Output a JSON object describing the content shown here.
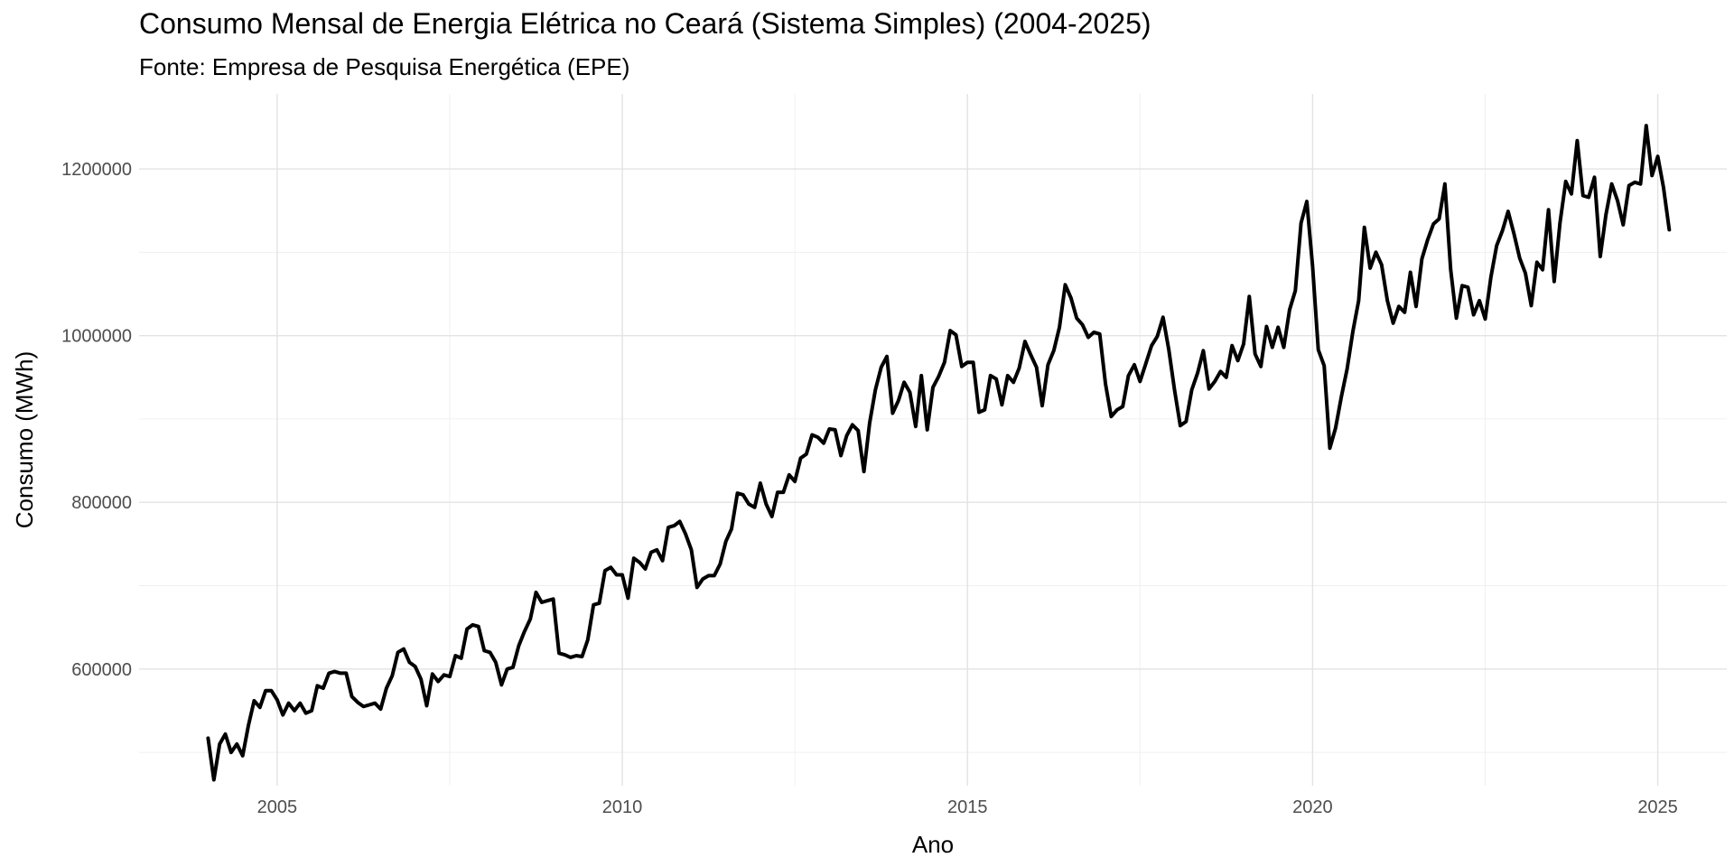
{
  "chart_data": {
    "type": "line",
    "title": "Consumo Mensal de Energia Elétrica no Ceará (Sistema Simples) (2004-2025)",
    "subtitle": "Fonte: Empresa de Pesquisa Energética (EPE)",
    "xlabel": "Ano",
    "ylabel": "Consumo (MWh)",
    "xlim": [
      2003.0,
      2026.0
    ],
    "ylim": [
      460000,
      1290000
    ],
    "x_ticks": [
      2005,
      2010,
      2015,
      2020,
      2025
    ],
    "y_ticks": [
      600000,
      800000,
      1000000,
      1200000
    ],
    "y_tick_labels": [
      "600000",
      "800000",
      "1000000",
      "1200000"
    ],
    "grid": true,
    "legend": "none",
    "line_color": "#000000",
    "series": [
      {
        "x": [
          2004.0,
          2004.083,
          2004.167,
          2004.25,
          2004.333,
          2004.417,
          2004.5,
          2004.583,
          2004.667,
          2004.75,
          2004.833,
          2004.917,
          2005.0,
          2005.083,
          2005.167,
          2005.25,
          2005.333,
          2005.417,
          2005.5,
          2005.583,
          2005.667,
          2005.75,
          2005.833,
          2005.917,
          2006.0,
          2006.083,
          2006.167,
          2006.25,
          2006.333,
          2006.417,
          2006.5,
          2006.583,
          2006.667,
          2006.75,
          2006.833,
          2006.917,
          2007.0,
          2007.083,
          2007.167,
          2007.25,
          2007.333,
          2007.417,
          2007.5,
          2007.583,
          2007.667,
          2007.75,
          2007.833,
          2007.917,
          2008.0,
          2008.083,
          2008.167,
          2008.25,
          2008.333,
          2008.417,
          2008.5,
          2008.583,
          2008.667,
          2008.75,
          2008.833,
          2008.917,
          2009.0,
          2009.083,
          2009.167,
          2009.25,
          2009.333,
          2009.417,
          2009.5,
          2009.583,
          2009.667,
          2009.75,
          2009.833,
          2009.917,
          2010.0,
          2010.083,
          2010.167,
          2010.25,
          2010.333,
          2010.417,
          2010.5,
          2010.583,
          2010.667,
          2010.75,
          2010.833,
          2010.917,
          2011.0,
          2011.083,
          2011.167,
          2011.25,
          2011.333,
          2011.417,
          2011.5,
          2011.583,
          2011.667,
          2011.75,
          2011.833,
          2011.917,
          2012.0,
          2012.083,
          2012.167,
          2012.25,
          2012.333,
          2012.417,
          2012.5,
          2012.583,
          2012.667,
          2012.75,
          2012.833,
          2012.917,
          2013.0,
          2013.083,
          2013.167,
          2013.25,
          2013.333,
          2013.417,
          2013.5,
          2013.583,
          2013.667,
          2013.75,
          2013.833,
          2013.917,
          2014.0,
          2014.083,
          2014.167,
          2014.25,
          2014.333,
          2014.417,
          2014.5,
          2014.583,
          2014.667,
          2014.75,
          2014.833,
          2014.917,
          2015.0,
          2015.083,
          2015.167,
          2015.25,
          2015.333,
          2015.417,
          2015.5,
          2015.583,
          2015.667,
          2015.75,
          2015.833,
          2015.917,
          2016.0,
          2016.083,
          2016.167,
          2016.25,
          2016.333,
          2016.417,
          2016.5,
          2016.583,
          2016.667,
          2016.75,
          2016.833,
          2016.917,
          2017.0,
          2017.083,
          2017.167,
          2017.25,
          2017.333,
          2017.417,
          2017.5,
          2017.583,
          2017.667,
          2017.75,
          2017.833,
          2017.917,
          2018.0,
          2018.083,
          2018.167,
          2018.25,
          2018.333,
          2018.417,
          2018.5,
          2018.583,
          2018.667,
          2018.75,
          2018.833,
          2018.917,
          2019.0,
          2019.083,
          2019.167,
          2019.25,
          2019.333,
          2019.417,
          2019.5,
          2019.583,
          2019.667,
          2019.75,
          2019.833,
          2019.917,
          2020.0,
          2020.083,
          2020.167,
          2020.25,
          2020.333,
          2020.417,
          2020.5,
          2020.583,
          2020.667,
          2020.75,
          2020.833,
          2020.917,
          2021.0,
          2021.083,
          2021.167,
          2021.25,
          2021.333,
          2021.417,
          2021.5,
          2021.583,
          2021.667,
          2021.75,
          2021.833,
          2021.917,
          2022.0,
          2022.083,
          2022.167,
          2022.25,
          2022.333,
          2022.417,
          2022.5,
          2022.583,
          2022.667,
          2022.75,
          2022.833,
          2022.917,
          2023.0,
          2023.083,
          2023.167,
          2023.25,
          2023.333,
          2023.417,
          2023.5,
          2023.583,
          2023.667,
          2023.75,
          2023.833,
          2023.917,
          2024.0,
          2024.083,
          2024.167,
          2024.25,
          2024.333,
          2024.417,
          2024.5,
          2024.583,
          2024.667,
          2024.75,
          2024.833,
          2024.917,
          2025.0,
          2025.083,
          2025.167
        ],
        "values": [
          517000,
          467000,
          510000,
          522000,
          500000,
          510000,
          496000,
          532000,
          562000,
          554000,
          574000,
          574000,
          563000,
          545000,
          559000,
          550000,
          559000,
          547000,
          550000,
          580000,
          577000,
          595000,
          597000,
          595000,
          595000,
          567000,
          560000,
          555000,
          557000,
          559000,
          552000,
          577000,
          592000,
          620000,
          624000,
          608000,
          603000,
          588000,
          556000,
          594000,
          585000,
          593000,
          591000,
          616000,
          613000,
          648000,
          653000,
          651000,
          622000,
          620000,
          608000,
          581000,
          600000,
          602000,
          628000,
          645000,
          660000,
          692000,
          680000,
          682000,
          684000,
          619000,
          617000,
          614000,
          616000,
          615000,
          635000,
          677000,
          679000,
          718000,
          722000,
          713000,
          713000,
          685000,
          733000,
          728000,
          720000,
          740000,
          743000,
          730000,
          770000,
          772000,
          777000,
          762000,
          743000,
          698000,
          708000,
          712000,
          712000,
          726000,
          753000,
          768000,
          811000,
          809000,
          798000,
          794000,
          823000,
          798000,
          783000,
          812000,
          812000,
          833000,
          825000,
          853000,
          858000,
          881000,
          878000,
          871000,
          888000,
          887000,
          856000,
          880000,
          893000,
          886000,
          837000,
          895000,
          935000,
          962000,
          975000,
          907000,
          922000,
          944000,
          932000,
          891000,
          952000,
          887000,
          938000,
          951000,
          968000,
          1006000,
          1001000,
          963000,
          968000,
          968000,
          908000,
          911000,
          952000,
          948000,
          917000,
          952000,
          944000,
          961000,
          993000,
          977000,
          962000,
          916000,
          965000,
          982000,
          1010000,
          1061000,
          1045000,
          1021000,
          1013000,
          998000,
          1004000,
          1002000,
          942000,
          903000,
          911000,
          915000,
          952000,
          965000,
          945000,
          966000,
          988000,
          999000,
          1022000,
          983000,
          935000,
          892000,
          897000,
          935000,
          955000,
          982000,
          936000,
          945000,
          957000,
          950000,
          988000,
          970000,
          990000,
          1047000,
          978000,
          963000,
          1011000,
          986000,
          1010000,
          986000,
          1031000,
          1054000,
          1135000,
          1161000,
          1083000,
          983000,
          964000,
          865000,
          889000,
          927000,
          960000,
          1005000,
          1042000,
          1130000,
          1081000,
          1100000,
          1085000,
          1042000,
          1015000,
          1035000,
          1028000,
          1076000,
          1035000,
          1092000,
          1115000,
          1134000,
          1140000,
          1182000,
          1079000,
          1021000,
          1060000,
          1058000,
          1025000,
          1042000,
          1020000,
          1070000,
          1108000,
          1126000,
          1149000,
          1122000,
          1093000,
          1075000,
          1036000,
          1088000,
          1079000,
          1151000,
          1065000,
          1135000,
          1185000,
          1170000,
          1234000,
          1168000,
          1166000,
          1190000,
          1095000,
          1145000,
          1182000,
          1162000,
          1133000,
          1180000,
          1184000,
          1182000,
          1252000,
          1192000,
          1215000,
          1178000,
          1127000
        ]
      }
    ]
  }
}
